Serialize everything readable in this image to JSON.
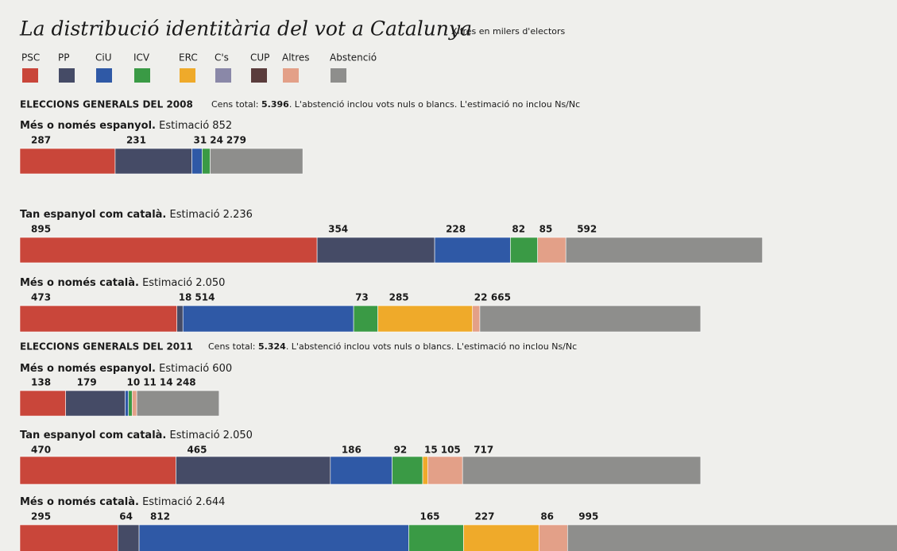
{
  "chart_data": {
    "type": "stacked-bar",
    "title": "La distribució identitària del vot a Catalunya",
    "subtitle": "Xifres en milers d'electors",
    "parties": [
      {
        "name": "PSC",
        "color": "#c9463a"
      },
      {
        "name": "PP",
        "color": "#454b66"
      },
      {
        "name": "CiU",
        "color": "#2f59a6"
      },
      {
        "name": "ICV",
        "color": "#3a9a45"
      },
      {
        "name": "ERC",
        "color": "#efaa2a"
      },
      {
        "name": "C's",
        "color": "#8a88a8"
      },
      {
        "name": "CUP",
        "color": "#5a3c3c"
      },
      {
        "name": "Altres",
        "color": "#e3a088"
      },
      {
        "name": "Abstenció",
        "color": "#8e8e8c"
      }
    ],
    "sections": [
      {
        "title": "ELECCIONS GENERALS DEL 2008",
        "census_label": "Cens total:",
        "census": "5.396",
        "note": ". L'abstenció inclou vots nuls o blancs. L'estimació no inclou Ns/Nc",
        "rows": [
          {
            "label": "Més o només espanyol.",
            "estimate": "Estimació 852",
            "values": [
              287,
              231,
              31,
              24,
              null,
              null,
              null,
              null,
              279
            ]
          },
          {
            "label": "Tan espanyol com català.",
            "estimate": "Estimació 2.236",
            "values": [
              895,
              354,
              228,
              82,
              null,
              null,
              null,
              85,
              592
            ]
          },
          {
            "label": "Més o només català.",
            "estimate": "Estimació 2.050",
            "values": [
              473,
              18,
              514,
              73,
              285,
              null,
              null,
              22,
              665
            ]
          }
        ]
      },
      {
        "title": "ELECCIONS GENERALS DEL 2011",
        "census_label": "Cens total:",
        "census": "5.324",
        "note": ". L'abstenció inclou vots nuls o blancs. L'estimació no inclou Ns/Nc",
        "rows": [
          {
            "label": "Més o només espanyol.",
            "estimate": "Estimació 600",
            "values": [
              138,
              179,
              10,
              11,
              null,
              null,
              null,
              14,
              248
            ]
          },
          {
            "label": "Tan espanyol com català.",
            "estimate": "Estimació 2.050",
            "values": [
              470,
              465,
              186,
              92,
              15,
              null,
              null,
              105,
              717
            ]
          },
          {
            "label": "Més o només català.",
            "estimate": "Estimació 2.644",
            "values": [
              295,
              64,
              812,
              165,
              227,
              null,
              null,
              86,
              995
            ]
          }
        ]
      }
    ]
  }
}
